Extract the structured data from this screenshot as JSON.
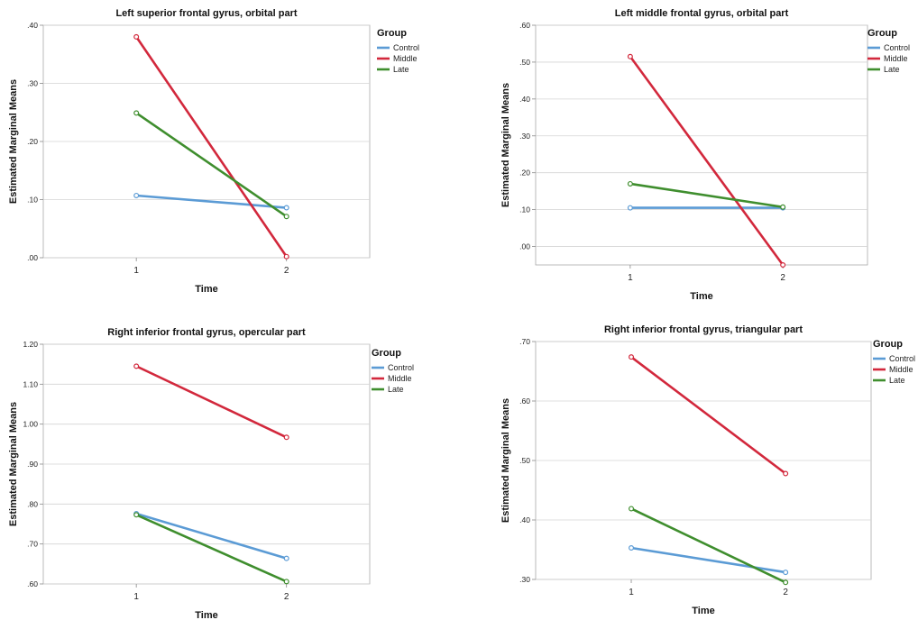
{
  "chart_data": [
    {
      "type": "line",
      "title": "Left superior frontal gyrus, orbital part",
      "xlabel": "Time",
      "ylabel": "Estimated Marginal Means",
      "categories": [
        "1",
        "2"
      ],
      "yticks": [
        ".00",
        ".10",
        ".20",
        ".30",
        ".40"
      ],
      "ylim": [
        0,
        0.4
      ],
      "grid": "horizontal",
      "legend": {
        "title": "Group",
        "placement": "top-right"
      },
      "series": [
        {
          "name": "Control",
          "color": "#5b9bd5",
          "values": [
            0.107,
            0.086
          ]
        },
        {
          "name": "Middle",
          "color": "#d2283c",
          "values": [
            0.38,
            0.002
          ]
        },
        {
          "name": "Late",
          "color": "#3f8e2e",
          "values": [
            0.249,
            0.071
          ]
        }
      ]
    },
    {
      "type": "line",
      "title": "Left middle frontal gyrus, orbital part",
      "xlabel": "Time",
      "ylabel": "Estimated Marginal Means",
      "categories": [
        "1",
        "2"
      ],
      "yticks": [
        ".00",
        ".10",
        ".20",
        ".30",
        ".40",
        ".50",
        ".60"
      ],
      "ylim": [
        -0.05,
        0.6
      ],
      "grid": "horizontal",
      "legend": {
        "title": "Group",
        "placement": "top-right"
      },
      "series": [
        {
          "name": "Control",
          "color": "#5b9bd5",
          "values": [
            0.105,
            0.105
          ]
        },
        {
          "name": "Middle",
          "color": "#d2283c",
          "values": [
            0.515,
            -0.05
          ]
        },
        {
          "name": "Late",
          "color": "#3f8e2e",
          "values": [
            0.17,
            0.107
          ]
        }
      ]
    },
    {
      "type": "line",
      "title": "Right inferior frontal gyrus, opercular part",
      "xlabel": "Time",
      "ylabel": "Estimated Marginal Means",
      "categories": [
        "1",
        "2"
      ],
      "yticks": [
        ".60",
        ".70",
        ".80",
        ".90",
        "1.00",
        "1.10",
        "1.20"
      ],
      "ylim": [
        0.6,
        1.2
      ],
      "grid": "horizontal",
      "legend": {
        "title": "Group",
        "placement": "top-right"
      },
      "series": [
        {
          "name": "Control",
          "color": "#5b9bd5",
          "values": [
            0.776,
            0.664
          ]
        },
        {
          "name": "Middle",
          "color": "#d2283c",
          "values": [
            1.145,
            0.967
          ]
        },
        {
          "name": "Late",
          "color": "#3f8e2e",
          "values": [
            0.773,
            0.606
          ]
        }
      ]
    },
    {
      "type": "line",
      "title": "Right inferior frontal gyrus, triangular part",
      "xlabel": "Time",
      "ylabel": "Estimated Marginal Means",
      "categories": [
        "1",
        "2"
      ],
      "yticks": [
        ".30",
        ".40",
        ".50",
        ".60",
        ".70"
      ],
      "ylim": [
        0.3,
        0.7
      ],
      "grid": "horizontal",
      "legend": {
        "title": "Group",
        "placement": "top-right"
      },
      "series": [
        {
          "name": "Control",
          "color": "#5b9bd5",
          "values": [
            0.353,
            0.312
          ]
        },
        {
          "name": "Middle",
          "color": "#d2283c",
          "values": [
            0.674,
            0.478
          ]
        },
        {
          "name": "Late",
          "color": "#3f8e2e",
          "values": [
            0.419,
            0.295
          ]
        }
      ]
    }
  ]
}
